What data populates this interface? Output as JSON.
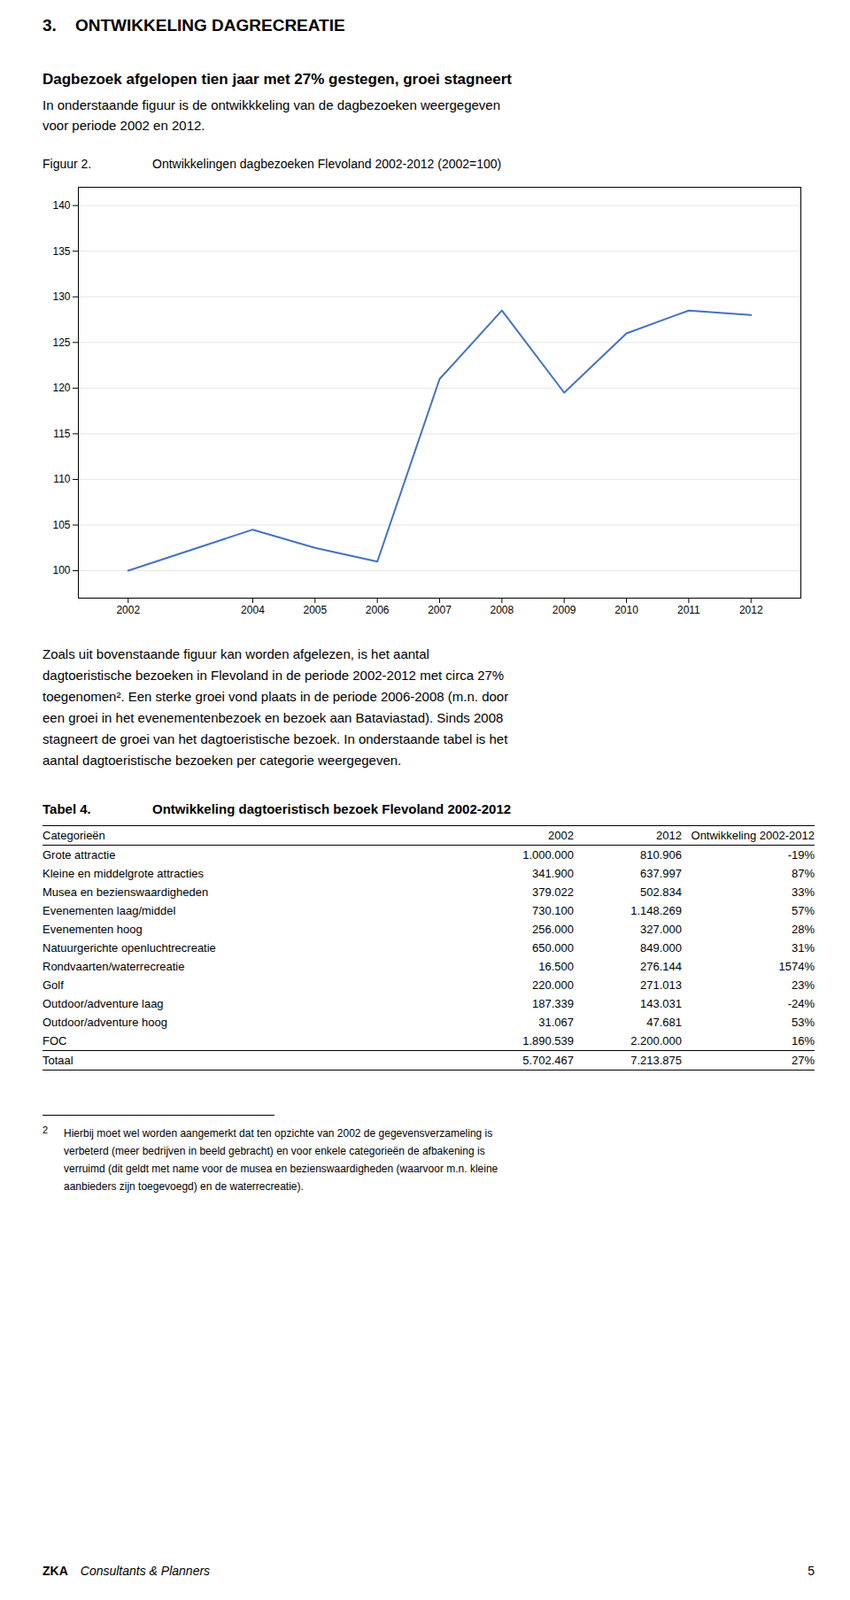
{
  "page_title": "3.    ONTWIKKELING DAGRECREATIE",
  "subtitle_bold": "Dagbezoek afgelopen tien jaar met 27% gestegen, groei stagneert",
  "subtitle": "In onderstaande figuur is de ontwikkkeling van de dagbezoeken weergegeven\nvoor periode 2002 en 2012.",
  "chart_data": {
    "type": "line",
    "label": "Figuur 2.",
    "title": "Ontwikkelingen dagbezoeken Flevoland 2002-2012 (2002=100)",
    "x": [
      2002,
      2004,
      2005,
      2006,
      2007,
      2008,
      2009,
      2010,
      2011,
      2012
    ],
    "values": [
      100,
      104.5,
      102.5,
      101,
      121,
      128.5,
      119.5,
      126,
      128.5,
      128
    ],
    "color": "#4472C4",
    "xlim": [
      2001.2,
      2012.8
    ],
    "xticks": [
      2002,
      2004,
      2005,
      2006,
      2007,
      2008,
      2009,
      2010,
      2011,
      2012
    ],
    "ylim": [
      97,
      142
    ],
    "yticks": [
      100,
      105,
      110,
      115,
      120,
      125,
      130,
      135,
      140
    ],
    "grid": true
  },
  "body_text": [
    "Zoals uit bovenstaande figuur kan worden afgelezen, is het aantal",
    "dagtoeristische bezoeken in Flevoland in de periode 2002-2012 met circa 27%",
    "toegenomen². Een sterke groei vond plaats in de periode 2006-2008 (m.n. door",
    "een groei in het evenementenbezoek en bezoek aan Bataviastad). Sinds 2008",
    "stagneert de groei van het dagtoeristische bezoek. In onderstaande tabel is het",
    "aantal dagtoeristische bezoeken per categorie weergegeven."
  ],
  "table": {
    "label": "Tabel 4.",
    "title": "Ontwikkeling dagtoeristisch bezoek Flevoland 2002-2012",
    "headers": [
      "Categorieën",
      "2002",
      "2012",
      "Ontwikkeling 2002-2012"
    ],
    "rows": [
      [
        "Grote attractie",
        "1.000.000",
        "810.906",
        "-19%"
      ],
      [
        "Kleine en middelgrote attracties",
        "341.900",
        "637.997",
        "87%"
      ],
      [
        "Musea en bezienswaardigheden",
        "379.022",
        "502.834",
        "33%"
      ],
      [
        "Evenementen laag/middel",
        "730.100",
        "1.148.269",
        "57%"
      ],
      [
        "Evenementen hoog",
        "256.000",
        "327.000",
        "28%"
      ],
      [
        "Natuurgerichte openluchtrecreatie",
        "650.000",
        "849.000",
        "31%"
      ],
      [
        "Rondvaarten/waterrecreatie",
        "16.500",
        "276.144",
        "1574%"
      ],
      [
        "Golf",
        "220.000",
        "271.013",
        "23%"
      ],
      [
        "Outdoor/adventure laag",
        "187.339",
        "143.031",
        "-24%"
      ],
      [
        "Outdoor/adventure hoog",
        "31.067",
        "47.681",
        "53%"
      ],
      [
        "FOC",
        "1.890.539",
        "2.200.000",
        "16%"
      ],
      [
        "Totaal",
        "5.702.467",
        "7.213.875",
        "27%"
      ]
    ]
  },
  "footnote": {
    "number": "2",
    "text": "Hierbij moet wel worden aangemerkt dat ten opzichte van 2002 de gegevensverzameling is\nverbeterd (meer bedrijven in beeld gebracht) en voor enkele categorieën de afbakening is\nverruimd (dit geldt met name voor de musea en bezienswaardigheden (waarvoor m.n. kleine\naanbieders zijn toegevoegd) en de waterrecreatie)."
  },
  "footer": {
    "bold": "ZKA",
    "italic": "Consultants & Planners",
    "page_number": "5"
  }
}
